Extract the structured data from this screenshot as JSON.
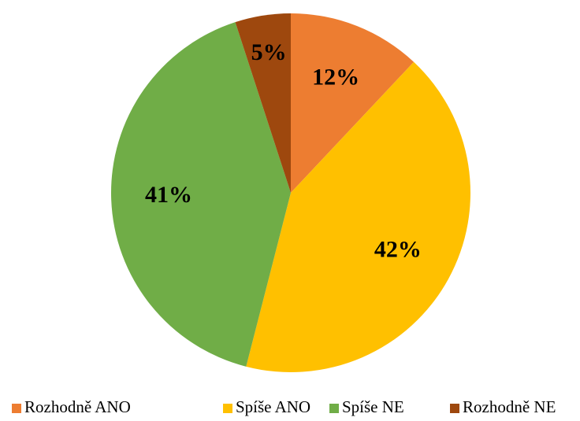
{
  "chart_data": {
    "type": "pie",
    "categories": [
      "Rozhodně ANO",
      "Spíše ANO",
      "Spíše NE",
      "Rozhodně NE"
    ],
    "values": [
      12,
      42,
      41,
      5
    ],
    "value_labels": [
      "12%",
      "42%",
      "41%",
      "5%"
    ],
    "colors": [
      "#ED7D31",
      "#FFC000",
      "#70AD47",
      "#9E480E"
    ],
    "legend": "bottom"
  }
}
